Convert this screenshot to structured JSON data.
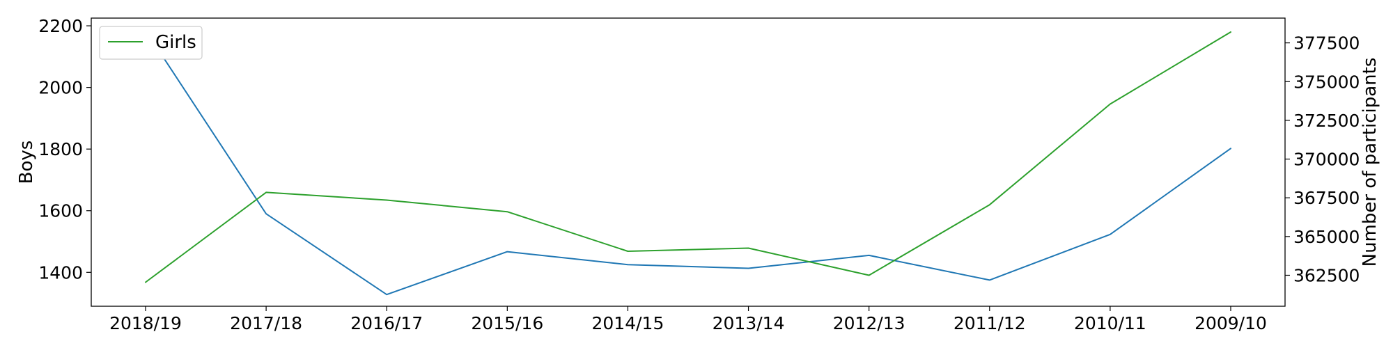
{
  "chart_data": {
    "type": "line",
    "title": "",
    "categories": [
      "2018/19",
      "2017/18",
      "2016/17",
      "2015/16",
      "2014/15",
      "2013/14",
      "2012/13",
      "2011/12",
      "2010/11",
      "2009/10"
    ],
    "xlabel": "",
    "ylabel_left": "Boys",
    "ylabel_right": "Number of participants",
    "ylim_left": [
      1290,
      2225
    ],
    "ylim_right": [
      360500,
      379100
    ],
    "yticks_left": [
      1400,
      1600,
      1800,
      2000,
      2200
    ],
    "yticks_right": [
      362500,
      365000,
      367500,
      370000,
      372500,
      375000,
      377500
    ],
    "legend_position": "top-left",
    "series": [
      {
        "name": "Boys",
        "axis": "left",
        "color": "#1f77b4",
        "values": [
          2185,
          1590,
          1328,
          1467,
          1425,
          1413,
          1455,
          1375,
          1523,
          1802
        ]
      },
      {
        "name": "Girls",
        "axis": "right",
        "color": "#2ca02c",
        "in_legend": true,
        "values": [
          362050,
          367850,
          367350,
          366600,
          364050,
          364250,
          362500,
          367050,
          373550,
          378200
        ]
      }
    ]
  }
}
